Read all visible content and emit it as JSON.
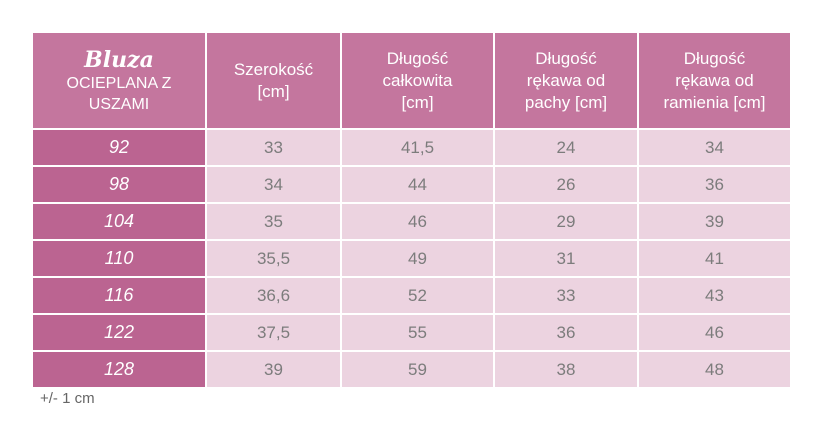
{
  "header": {
    "brand": "Bluza",
    "subtitle_lines": [
      "OCIEPLANA Z",
      "USZAMI"
    ],
    "columns": [
      [
        "Szerokość",
        "[cm]"
      ],
      [
        "Długość",
        "całkowita",
        "[cm]"
      ],
      [
        "Długość",
        "rękawa od",
        "pachy  [cm]"
      ],
      [
        "Długość",
        "rękawa od",
        "ramienia [cm]"
      ]
    ]
  },
  "table": {
    "rows": [
      [
        "92",
        "33",
        "41,5",
        "24",
        "34"
      ],
      [
        "98",
        "34",
        "44",
        "26",
        "36"
      ],
      [
        "104",
        "35",
        "46",
        "29",
        "39"
      ],
      [
        "110",
        "35,5",
        "49",
        "31",
        "41"
      ],
      [
        "116",
        "36,6",
        "52",
        "33",
        "43"
      ],
      [
        "122",
        "37,5",
        "55",
        "36",
        "46"
      ],
      [
        "128",
        "39",
        "59",
        "38",
        "48"
      ]
    ]
  },
  "footnote": "+/- 1 cm"
}
